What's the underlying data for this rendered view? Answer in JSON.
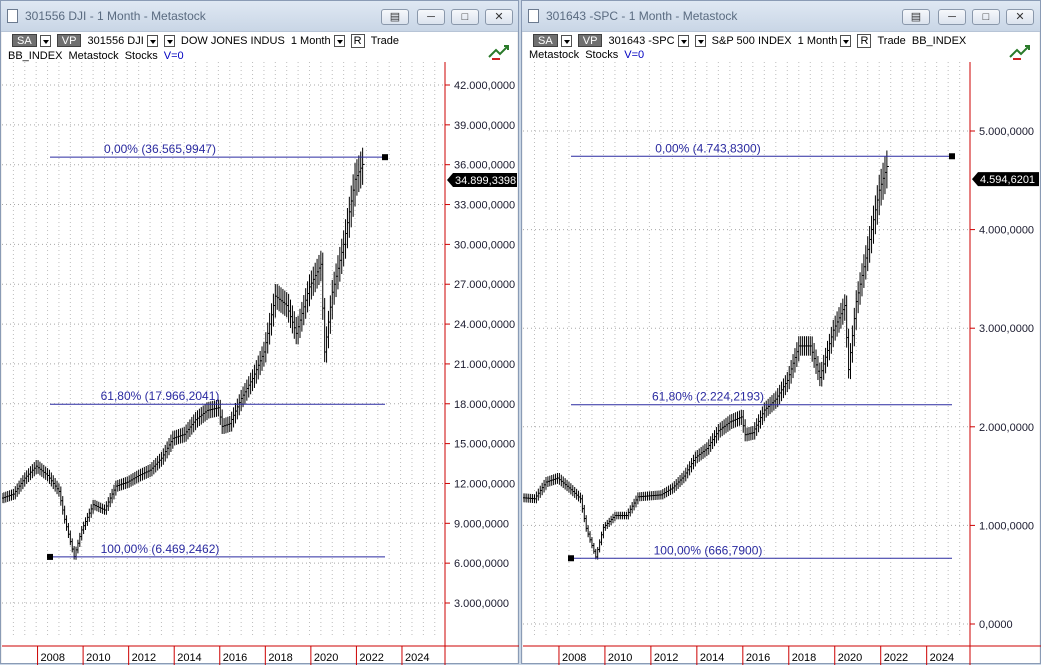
{
  "windows": [
    {
      "id": "dji",
      "title": "301556 DJI - 1 Month - Metastock",
      "toolbar": {
        "sa": "SA",
        "vp": "VP",
        "symbol": "301556 DJI",
        "name": "DOW JONES INDUS",
        "period": "1 Month",
        "r": "R",
        "trade": "Trade",
        "index": "BB_INDEX",
        "source": "Metastock",
        "category": "Stocks",
        "volume": "V=0"
      },
      "price_tag": "34.899,3398",
      "fib": [
        {
          "label": "0,00% (36.565,9947)",
          "value": 36565.9947
        },
        {
          "label": "61,80% (17.966,2041)",
          "value": 17966.2041
        },
        {
          "label": "100,00% (6.469,2462)",
          "value": 6469.2462
        }
      ],
      "y_ticks": [
        "3.000,0000",
        "6.000,0000",
        "9.000,0000",
        "12.000,0000",
        "15.000,0000",
        "18.000,0000",
        "21.000,0000",
        "24.000,0000",
        "27.000,0000",
        "30.000,0000",
        "33.000,0000",
        "36.000,0000",
        "39.000,0000",
        "42.000,0000"
      ],
      "y_tick_values": [
        3000,
        6000,
        9000,
        12000,
        15000,
        18000,
        21000,
        24000,
        27000,
        30000,
        33000,
        36000,
        39000,
        42000
      ],
      "x_ticks": [
        "2008",
        "2010",
        "2012",
        "2014",
        "2016",
        "2018",
        "2020",
        "2022",
        "2024"
      ]
    },
    {
      "id": "spc",
      "title": "301643 -SPC - 1 Month - Metastock",
      "toolbar": {
        "sa": "SA",
        "vp": "VP",
        "symbol": "301643 -SPC",
        "name": "S&P 500 INDEX",
        "period": "1 Month",
        "r": "R",
        "trade": "Trade",
        "index": "BB_INDEX",
        "source": "Metastock",
        "category": "Stocks",
        "volume": "V=0"
      },
      "price_tag": "4.594,6201",
      "fib": [
        {
          "label": "0,00% (4.743,8300)",
          "value": 4743.83
        },
        {
          "label": "61,80% (2.224,2193)",
          "value": 2224.2193
        },
        {
          "label": "100,00% (666,7900)",
          "value": 666.79
        }
      ],
      "y_ticks": [
        "0,0000",
        "1.000,0000",
        "2.000,0000",
        "3.000,0000",
        "4.000,0000",
        "5.000,0000"
      ],
      "y_tick_values": [
        0,
        1000,
        2000,
        3000,
        4000,
        5000
      ],
      "x_ticks": [
        "2008",
        "2010",
        "2012",
        "2014",
        "2016",
        "2018",
        "2020",
        "2022",
        "2024"
      ]
    }
  ],
  "colors": {
    "fib_line": "#2a2aa0",
    "axis_red": "#cc0000",
    "bars": "#000000"
  },
  "chart_data": [
    {
      "type": "line",
      "series": [
        {
          "x": [
            "2006-01",
            "2006-07",
            "2007-01",
            "2007-07",
            "2008-01",
            "2008-07",
            "2008-10",
            "2009-03",
            "2009-07",
            "2010-01",
            "2010-07",
            "2011-01",
            "2011-07",
            "2012-01",
            "2012-07",
            "2013-01",
            "2013-07",
            "2014-01",
            "2014-07",
            "2015-01",
            "2015-07",
            "2015-09",
            "2016-01",
            "2016-07",
            "2017-01",
            "2017-07",
            "2018-01",
            "2018-07",
            "2018-12",
            "2019-07",
            "2020-01",
            "2020-03",
            "2020-07",
            "2021-01",
            "2021-07",
            "2021-12"
          ],
          "values": [
            10900,
            11200,
            12400,
            13300,
            12600,
            11400,
            9300,
            6500,
            8500,
            10400,
            10000,
            11800,
            12100,
            12600,
            13000,
            13900,
            15400,
            15700,
            16800,
            17500,
            17700,
            16300,
            16500,
            18400,
            19900,
            21900,
            26100,
            25400,
            23300,
            26800,
            28500,
            21900,
            26400,
            30000,
            34900,
            36300
          ]
        }
      ],
      "ylim": [
        0,
        44000
      ]
    },
    {
      "type": "line",
      "series": [
        {
          "x": [
            "2006-01",
            "2006-07",
            "2007-01",
            "2007-07",
            "2008-01",
            "2008-07",
            "2008-10",
            "2009-03",
            "2009-07",
            "2010-01",
            "2010-07",
            "2011-01",
            "2011-07",
            "2012-01",
            "2012-07",
            "2013-01",
            "2013-07",
            "2014-01",
            "2014-07",
            "2015-01",
            "2015-07",
            "2015-09",
            "2016-01",
            "2016-07",
            "2017-01",
            "2017-07",
            "2018-01",
            "2018-07",
            "2018-12",
            "2019-07",
            "2020-01",
            "2020-03",
            "2020-07",
            "2021-01",
            "2021-07",
            "2021-12"
          ],
          "values": [
            1280,
            1270,
            1440,
            1480,
            1380,
            1270,
            970,
            680,
            980,
            1100,
            1100,
            1290,
            1300,
            1310,
            1380,
            1500,
            1690,
            1780,
            1960,
            2050,
            2100,
            1920,
            1940,
            2170,
            2280,
            2470,
            2820,
            2820,
            2500,
            2980,
            3230,
            2580,
            3270,
            3800,
            4400,
            4700
          ]
        }
      ],
      "ylim": [
        -100,
        5400
      ]
    }
  ]
}
